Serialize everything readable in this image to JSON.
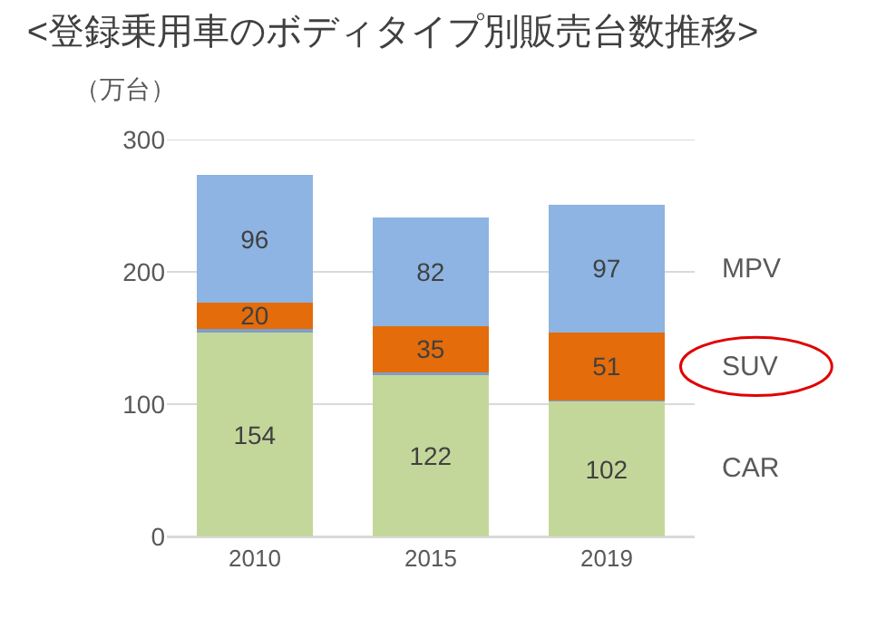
{
  "chart_data": {
    "type": "bar",
    "stacked": true,
    "title": "<登録乗用車のボディタイプ別販売台数推移>",
    "ylabel": "（万台）",
    "categories": [
      "2010",
      "2015",
      "2019"
    ],
    "series": [
      {
        "name": "CAR",
        "color": "#c4d79b",
        "values": [
          154,
          122,
          102
        ],
        "value_labels": [
          "154",
          "122",
          "102"
        ]
      },
      {
        "color": "#7f9ec8",
        "values": [
          3,
          2,
          1
        ]
      },
      {
        "name": "SUV",
        "color": "#e46c0a",
        "values": [
          20,
          35,
          51
        ],
        "value_labels": [
          "20",
          "35",
          "51"
        ]
      },
      {
        "name": "MPV",
        "color": "#8db4e2",
        "values": [
          96,
          82,
          97
        ],
        "value_labels": [
          "96",
          "82",
          "97"
        ]
      }
    ],
    "ylim": [
      0,
      300
    ],
    "yticks": [
      0,
      100,
      200,
      300
    ],
    "grid": "y",
    "legend": false
  }
}
